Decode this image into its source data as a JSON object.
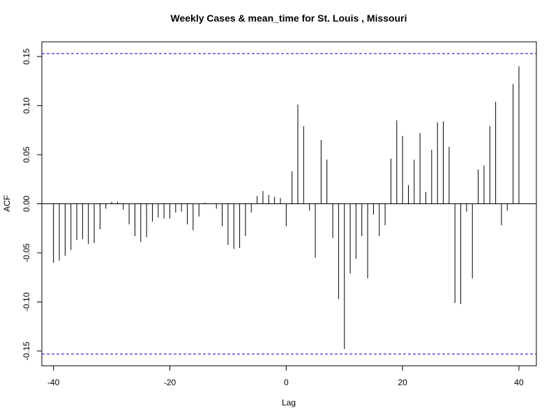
{
  "chart_data": {
    "type": "bar",
    "title": "Weekly Cases & mean_time for St. Louis , Missouri",
    "xlabel": "Lag",
    "ylabel": "ACF",
    "xlim": [
      -42,
      43
    ],
    "ylim": [
      -0.165,
      0.165
    ],
    "x_ticks": [
      -40,
      -20,
      0,
      20,
      40
    ],
    "x_tick_labels": [
      "-40",
      "-20",
      "0",
      "20",
      "40"
    ],
    "y_ticks": [
      -0.15,
      -0.1,
      -0.05,
      0.0,
      0.05,
      0.1,
      0.15
    ],
    "y_tick_labels": [
      "-0.15",
      "-0.10",
      "-0.05",
      "0.00",
      "0.05",
      "0.10",
      "0.15"
    ],
    "confidence_bounds": [
      0.153,
      -0.153
    ],
    "colors": {
      "bars": "#000000",
      "bounds": "#0000cc",
      "axes": "#000000"
    },
    "lags": [
      -40,
      -39,
      -38,
      -37,
      -36,
      -35,
      -34,
      -33,
      -32,
      -31,
      -30,
      -29,
      -28,
      -27,
      -26,
      -25,
      -24,
      -23,
      -22,
      -21,
      -20,
      -19,
      -18,
      -17,
      -16,
      -15,
      -14,
      -13,
      -12,
      -11,
      -10,
      -9,
      -8,
      -7,
      -6,
      -5,
      -4,
      -3,
      -2,
      -1,
      0,
      1,
      2,
      3,
      4,
      5,
      6,
      7,
      8,
      9,
      10,
      11,
      12,
      13,
      14,
      15,
      16,
      17,
      18,
      19,
      20,
      21,
      22,
      23,
      24,
      25,
      26,
      27,
      28,
      29,
      30,
      31,
      32,
      33,
      34,
      35,
      36,
      37,
      38,
      39,
      40
    ],
    "values": [
      -0.06,
      -0.058,
      -0.053,
      -0.047,
      -0.037,
      -0.036,
      -0.041,
      -0.04,
      -0.026,
      -0.005,
      0.002,
      0.002,
      -0.006,
      -0.021,
      -0.033,
      -0.039,
      -0.034,
      -0.018,
      -0.014,
      -0.015,
      -0.015,
      -0.009,
      -0.008,
      -0.021,
      -0.027,
      -0.013,
      0.001,
      0.0,
      -0.005,
      -0.023,
      -0.042,
      -0.046,
      -0.045,
      -0.033,
      -0.009,
      0.008,
      0.013,
      0.009,
      0.007,
      0.006,
      -0.023,
      0.033,
      0.101,
      0.079,
      -0.007,
      -0.055,
      0.065,
      0.045,
      -0.035,
      -0.097,
      -0.148,
      -0.071,
      -0.056,
      -0.033,
      -0.076,
      -0.011,
      -0.033,
      -0.022,
      0.046,
      0.085,
      0.069,
      0.019,
      0.045,
      0.072,
      0.012,
      0.055,
      0.083,
      0.084,
      0.058,
      -0.101,
      -0.102,
      -0.008,
      -0.076,
      0.035,
      0.039,
      0.079,
      0.104,
      -0.022,
      -0.007,
      0.122,
      0.14
    ]
  }
}
